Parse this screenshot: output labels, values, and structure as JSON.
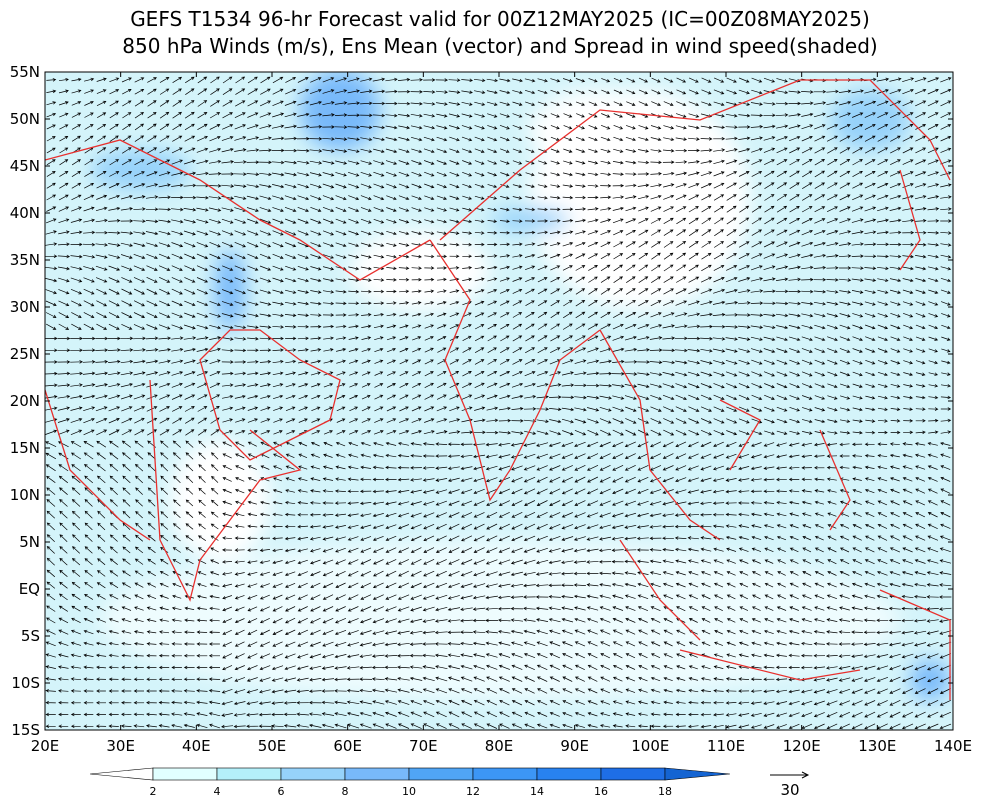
{
  "title": [
    "GEFS T1534 96-hr Forecast valid for 00Z12MAY2025 (IC=00Z08MAY2025)",
    "850 hPa Winds (m/s), Ens Mean (vector) and Spread in wind speed(shaded)"
  ],
  "lat_labels": [
    "55N",
    "50N",
    "45N",
    "40N",
    "35N",
    "30N",
    "25N",
    "20N",
    "15N",
    "10N",
    "5N",
    "EQ",
    "5S",
    "10S",
    "15S"
  ],
  "lon_labels": [
    "20E",
    "30E",
    "40E",
    "50E",
    "60E",
    "70E",
    "80E",
    "90E",
    "100E",
    "110E",
    "120E",
    "130E",
    "140E"
  ],
  "colorbar": {
    "labels": [
      "2",
      "4",
      "6",
      "8",
      "10",
      "12",
      "14",
      "16",
      "18"
    ],
    "colors": [
      "#ffffff",
      "#e1ffff",
      "#b4f0fa",
      "#96d2fa",
      "#78b9fa",
      "#50a5f5",
      "#3c96f5",
      "#2882f0",
      "#1e6ee6",
      "#1464d2"
    ]
  },
  "reference_vector": {
    "label": "30"
  }
}
